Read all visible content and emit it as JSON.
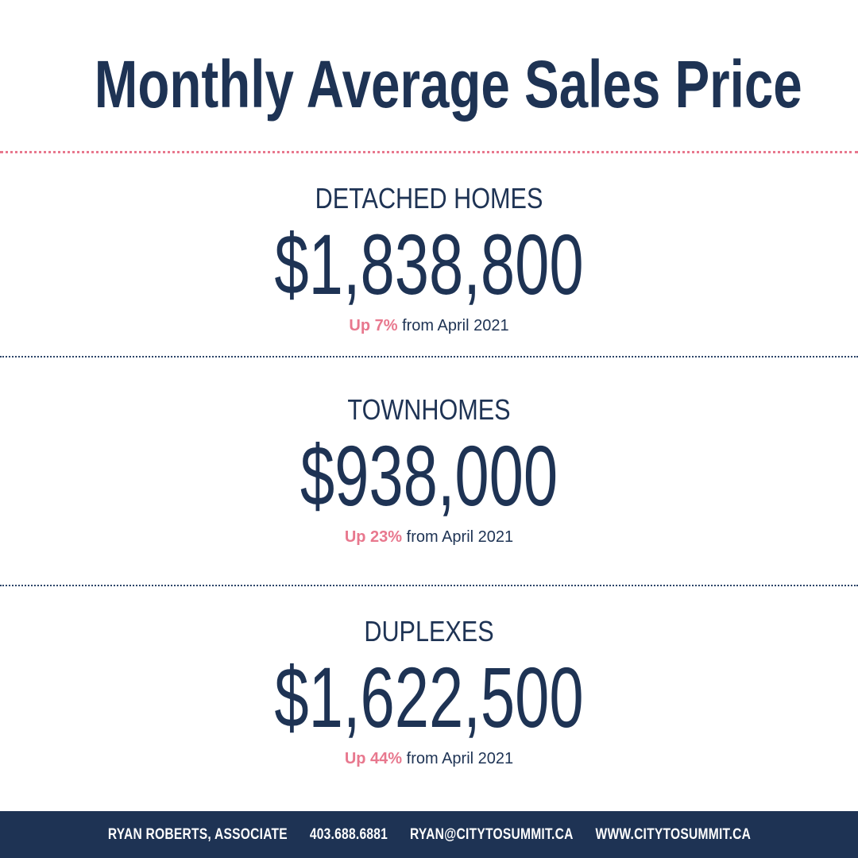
{
  "title": "Monthly Average Sales Price",
  "sections": [
    {
      "category": "DETACHED HOMES",
      "price": "$1,838,800",
      "change_highlight": "Up 7%",
      "change_rest": " from April 2021"
    },
    {
      "category": "TOWNHOMES",
      "price": "$938,000",
      "change_highlight": "Up 23%",
      "change_rest": " from April 2021"
    },
    {
      "category": "DUPLEXES",
      "price": "$1,622,500",
      "change_highlight": "Up 44%",
      "change_rest": " from April 2021"
    }
  ],
  "footer": {
    "name": "RYAN ROBERTS, ASSOCIATE",
    "phone": "403.688.6881",
    "email": "RYAN@CITYTOSUMMIT.CA",
    "website": "WWW.CITYTOSUMMIT.CA"
  },
  "colors": {
    "navy": "#1e3354",
    "accent_pink": "#e8788e",
    "background": "#ffffff"
  }
}
